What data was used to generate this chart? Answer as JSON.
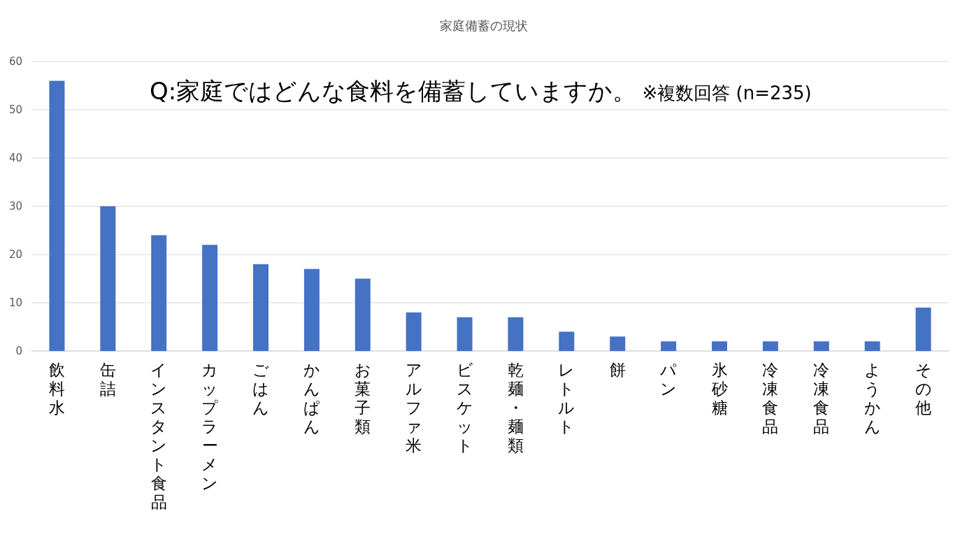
{
  "chart_data": {
    "type": "bar",
    "title": "家庭備蓄の現状",
    "annotations": [
      "Q:家庭ではどんな食料を備蓄していますか。",
      "※複数回答 (n=235)"
    ],
    "categories": [
      "飲料水",
      "缶詰",
      "インスタント食品",
      "カップラーメン",
      "ごはん",
      "かんぱん",
      "お菓子類",
      "アルファ米",
      "ビスケット",
      "乾麺・麺類",
      "レトルト",
      "餅",
      "パン",
      "氷砂糖",
      "冷凍食品",
      "冷凍食品",
      "ようかん",
      "その他"
    ],
    "values": [
      56,
      30,
      24,
      22,
      18,
      17,
      15,
      8,
      7,
      7,
      4,
      3,
      2,
      2,
      2,
      2,
      2,
      9
    ],
    "color": "#4472c4",
    "ylim": [
      0,
      60
    ],
    "yticks": [
      0,
      10,
      20,
      30,
      40,
      50,
      60
    ],
    "grid": "y"
  }
}
